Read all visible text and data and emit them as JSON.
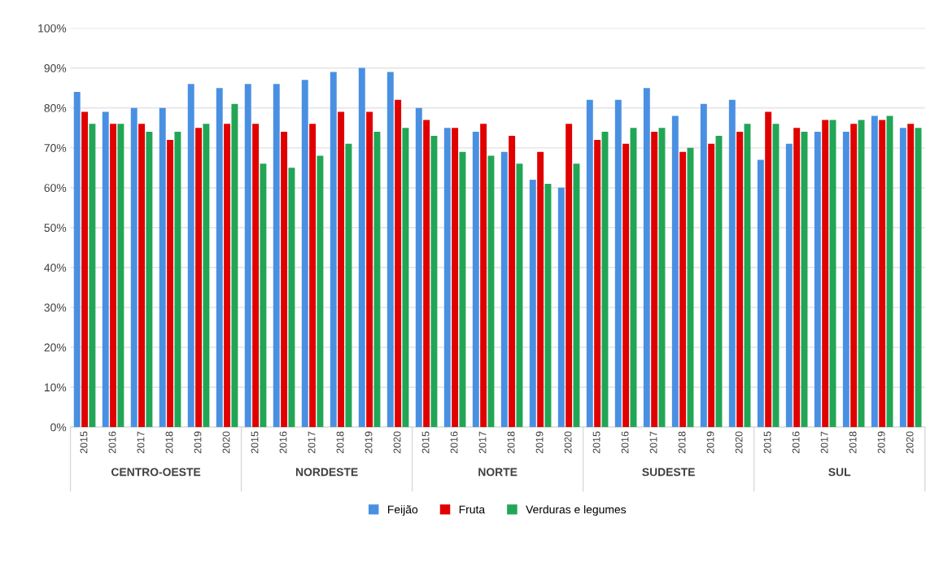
{
  "chart_data": {
    "type": "bar",
    "categories": [
      "2015",
      "2016",
      "2017",
      "2018",
      "2019",
      "2020",
      "2015",
      "2016",
      "2017",
      "2018",
      "2019",
      "2020",
      "2015",
      "2016",
      "2017",
      "2018",
      "2019",
      "2020",
      "2015",
      "2016",
      "2017",
      "2018",
      "2019",
      "2020",
      "2015",
      "2016",
      "2017",
      "2018",
      "2019",
      "2020"
    ],
    "series": [
      {
        "name": "Feijão",
        "color": "#4a90e2",
        "values": [
          84,
          79,
          80,
          80,
          86,
          85,
          86,
          86,
          87,
          89,
          90,
          89,
          80,
          75,
          74,
          69,
          62,
          60,
          82,
          82,
          85,
          78,
          81,
          82,
          67,
          71,
          74,
          74,
          78,
          75
        ]
      },
      {
        "name": "Fruta",
        "color": "#e00000",
        "values": [
          79,
          76,
          76,
          72,
          75,
          76,
          76,
          74,
          76,
          79,
          79,
          82,
          77,
          75,
          76,
          73,
          69,
          76,
          72,
          71,
          74,
          69,
          71,
          74,
          79,
          75,
          77,
          76,
          77,
          76
        ]
      },
      {
        "name": "Verduras e legumes",
        "color": "#21a656",
        "values": [
          76,
          76,
          74,
          74,
          76,
          81,
          66,
          65,
          68,
          71,
          74,
          75,
          73,
          69,
          68,
          66,
          61,
          66,
          74,
          75,
          75,
          70,
          73,
          76,
          76,
          74,
          77,
          77,
          78,
          75
        ]
      }
    ],
    "annotations": [
      "CENTRO-OESTE",
      "NORDESTE",
      "NORTE",
      "SUDESTE",
      "SUL"
    ],
    "ylim": [
      0,
      100
    ],
    "yticks": [
      {
        "value": 0,
        "label": "0%"
      },
      {
        "value": 10,
        "label": "10%"
      },
      {
        "value": 20,
        "label": "20%"
      },
      {
        "value": 30,
        "label": "30%"
      },
      {
        "value": 40,
        "label": "40%"
      },
      {
        "value": 50,
        "label": "50%"
      },
      {
        "value": 60,
        "label": "60%"
      },
      {
        "value": 70,
        "label": "70%"
      },
      {
        "value": 80,
        "label": "80%"
      },
      {
        "value": 90,
        "label": "90%"
      },
      {
        "value": 100,
        "label": "100%"
      }
    ],
    "grid": "y",
    "legend": "bottom"
  }
}
